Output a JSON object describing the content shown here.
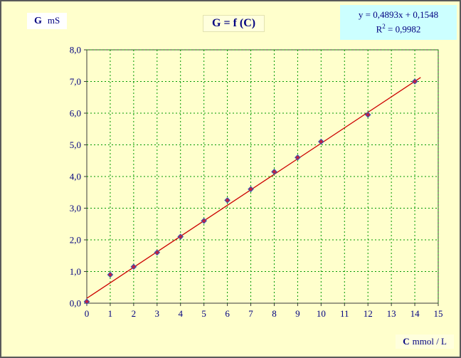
{
  "y_axis_box": {
    "symbol": "G",
    "unit": "mS"
  },
  "title": "G = f (C)",
  "equation_box": {
    "line1": "y = 0,4893x + 0,1548",
    "r2_base": "R",
    "r2_exp": "2",
    "r2_rest": " = 0,9982"
  },
  "x_axis_box": {
    "symbol": "C",
    "unit": "mmol / L"
  },
  "chart_data": {
    "type": "scatter",
    "title": "G = f (C)",
    "xlabel": "C mmol / L",
    "ylabel": "G mS",
    "xlim": [
      0,
      15
    ],
    "ylim": [
      0,
      8
    ],
    "grid": true,
    "x_ticks": [
      "0",
      "1",
      "2",
      "3",
      "4",
      "5",
      "6",
      "7",
      "8",
      "9",
      "10",
      "11",
      "12",
      "13",
      "14",
      "15"
    ],
    "y_ticks": [
      "0,0",
      "1,0",
      "2,0",
      "3,0",
      "4,0",
      "5,0",
      "6,0",
      "7,0",
      "8,0"
    ],
    "points": [
      [
        0,
        0.05
      ],
      [
        1,
        0.9
      ],
      [
        2,
        1.15
      ],
      [
        3,
        1.6
      ],
      [
        4,
        2.1
      ],
      [
        5,
        2.6
      ],
      [
        6,
        3.25
      ],
      [
        7,
        3.6
      ],
      [
        8,
        4.15
      ],
      [
        9,
        4.6
      ],
      [
        10,
        5.1
      ],
      [
        12,
        5.95
      ],
      [
        14,
        7.0
      ]
    ],
    "trendline": {
      "slope": 0.4893,
      "intercept": 0.1548,
      "x_start": 0,
      "x_end": 14.25,
      "equation": "y = 0,4893x + 0,1548",
      "r_squared": "0,9982"
    },
    "colors": {
      "background": "#ffffcc",
      "plot_border": "#3a3a3a",
      "grid": "#009900",
      "axis_text": "#000080",
      "trendline": "#cc0000",
      "marker_fill": "#c02040",
      "marker_stroke": "#3355bb",
      "equation_box": "#ccffff"
    }
  }
}
